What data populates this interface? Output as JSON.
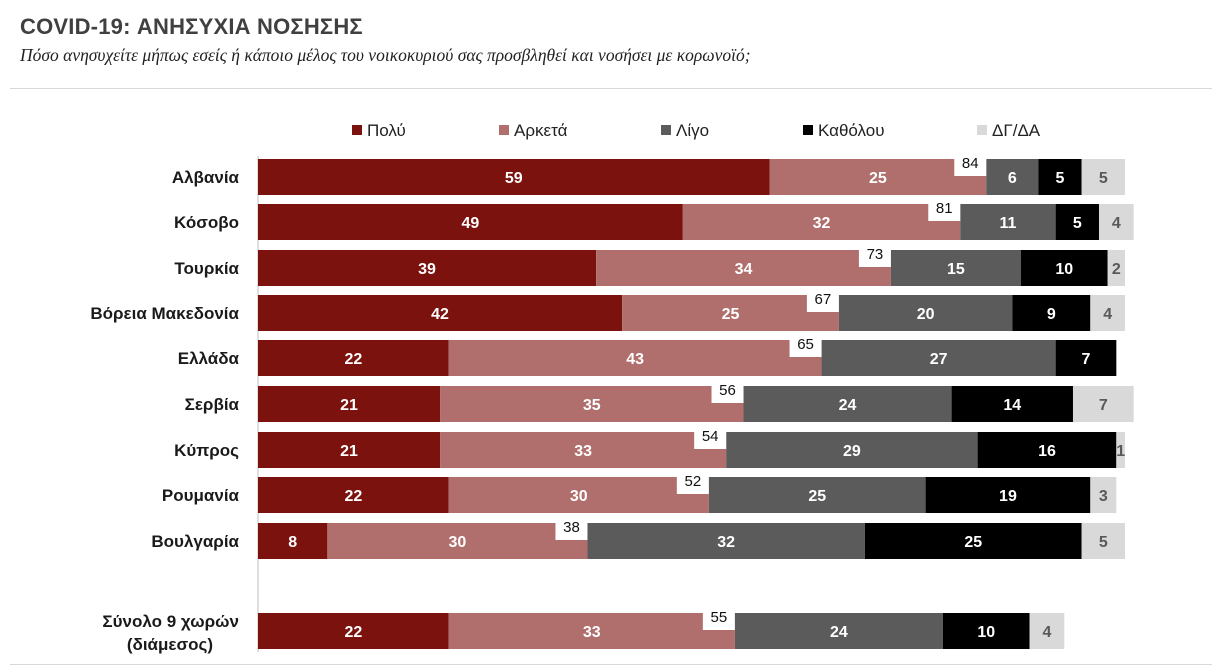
{
  "title": "COVID-19: ΑΝΗΣΥΧΙΑ ΝΟΣΗΣΗΣ",
  "subtitle": "Πόσο ανησυχείτε μήπως εσείς ή κάποιο μέλος του νοικοκυριού σας προσβληθεί και νοσήσει με κορωνοϊό;",
  "chart_data": {
    "type": "bar",
    "orientation": "horizontal",
    "stacked": true,
    "title": "COVID-19: ΑΝΗΣΥΧΙΑ ΝΟΣΗΣΗΣ",
    "subtitle": "Πόσο ανησυχείτε μήπως εσείς ή κάποιο μέλος του νοικοκυριού σας προσβληθεί και νοσήσει με κορωνοϊό;",
    "legend_position": "top",
    "grid": false,
    "xlim": [
      0,
      100
    ],
    "categories": [
      "Αλβανία",
      "Κόσοβο",
      "Τουρκία",
      "Βόρεια Μακεδονία",
      "Ελλάδα",
      "Σερβία",
      "Κύπρος",
      "Ρουμανία",
      "Βουλγαρία",
      "Σύνολο 9 χωρών (διάμεσος)"
    ],
    "series": [
      {
        "name": "Πολύ",
        "color": "#7b120d",
        "label_color": "#ffffff",
        "values": [
          59,
          49,
          39,
          42,
          22,
          21,
          21,
          22,
          8,
          22
        ]
      },
      {
        "name": "Αρκετά",
        "color": "#b06f6c",
        "label_color": "#ffffff",
        "values": [
          25,
          32,
          34,
          25,
          43,
          35,
          33,
          30,
          30,
          33
        ]
      },
      {
        "name": "Λίγο",
        "color": "#5b5b5b",
        "label_color": "#ffffff",
        "values": [
          6,
          11,
          15,
          20,
          27,
          24,
          29,
          25,
          32,
          24
        ]
      },
      {
        "name": "Καθόλου",
        "color": "#000000",
        "label_color": "#ffffff",
        "values": [
          5,
          5,
          10,
          9,
          7,
          14,
          16,
          19,
          25,
          10
        ]
      },
      {
        "name": "ΔΓ/ΔΑ",
        "color": "#d9d9d9",
        "label_color": "#595959",
        "values": [
          5,
          4,
          2,
          4,
          null,
          7,
          1,
          3,
          5,
          4
        ]
      }
    ],
    "totals_label": [
      84,
      81,
      73,
      67,
      65,
      56,
      54,
      52,
      38,
      55
    ]
  }
}
